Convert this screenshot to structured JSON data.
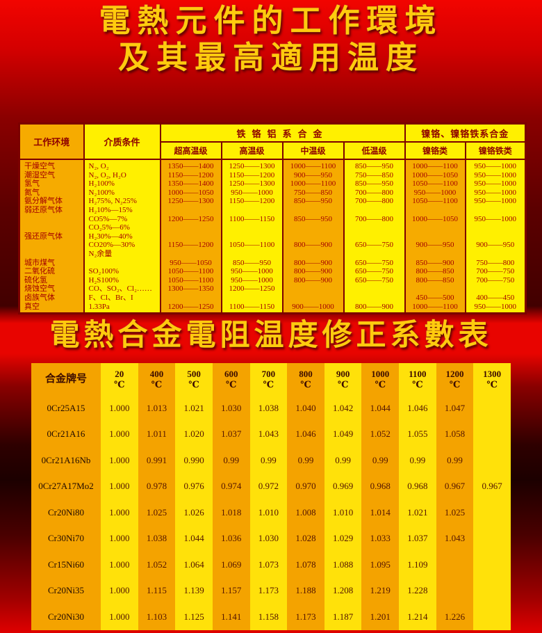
{
  "page": {
    "title_line1": "電熱元件的工作環境",
    "title_line2": "及其最高適用温度",
    "subtitle": "電熱合金電阻温度修正系數表"
  },
  "colors": {
    "background_red": "#c00000",
    "title_gold": "#ffcb0e",
    "table_orange": "#f6ab00",
    "table_yellow": "#fff000",
    "border_maroon": "#7c0000",
    "table1_text": "#a40000",
    "table2_text": "#531400"
  },
  "table1": {
    "header": {
      "col_env": "工作环境",
      "col_media": "介质条件",
      "group_fecral": "铁铬铝系合金",
      "group_nicr": "镍铬、镍铬铁系合金",
      "sub": [
        "超高温级",
        "高温级",
        "中温级",
        "低温级",
        "镍铬类",
        "镍铬铁类"
      ]
    },
    "body": {
      "env": [
        "干燥空气",
        "潮湿空气",
        "氢气",
        "氮气",
        "氨分解气体",
        "弱还原气体",
        "",
        "",
        "强还原气体",
        "",
        "",
        "城市煤气",
        "二氧化硫",
        "硫化氢",
        "烧蚀空气",
        "卤族气体",
        "真空"
      ],
      "media": [
        "N₂, O₂",
        "N₂, O₂, H₂O",
        "H₂100%",
        "N₂100%",
        "H₂75%, N₂25%",
        "H₂10%—15%",
        "CO5%—7%",
        "CO₂5%—6%",
        "H₂30%—40%",
        "CO20%—30%",
        "N₂余量",
        "",
        "SO₂100%",
        "H₂S100%",
        "CO、SO₂、Cl₂……",
        "F、Cl、Br、I",
        "1.33Pa"
      ],
      "ultra_high": [
        "1350——1400",
        "1150——1200",
        "1350——1400",
        "1000——1050",
        "1250——1300",
        "",
        "1200——1250",
        "",
        "",
        "1150——1200",
        "",
        "950——1050",
        "1050——1100",
        "1050——1100",
        "1300——1350",
        "",
        "1200——1250"
      ],
      "high": [
        "1250——1300",
        "1150——1200",
        "1250——1300",
        "950——1000",
        "1150——1200",
        "",
        "1100——1150",
        "",
        "",
        "1050——1100",
        "",
        "850——950",
        "950——1000",
        "950——1000",
        "1200——1250",
        "",
        "1100——1150"
      ],
      "medium": [
        "1000——1100",
        "900——950",
        "1000——1100",
        "750——850",
        "850——950",
        "",
        "850——950",
        "",
        "",
        "800——900",
        "",
        "800——900",
        "800——900",
        "800——900",
        "",
        "",
        "900——1000"
      ],
      "low": [
        "850——950",
        "750——850",
        "850——950",
        "700——800",
        "700——800",
        "",
        "700——800",
        "",
        "",
        "650——750",
        "",
        "650——750",
        "650——750",
        "650——750",
        "",
        "",
        "800——900"
      ],
      "nicr": [
        "1000——1100",
        "1000——1050",
        "1050——1100",
        "950——1000",
        "1050——1100",
        "",
        "1000——1050",
        "",
        "",
        "900——950",
        "",
        "850——900",
        "800——850",
        "800——850",
        "",
        "450——500",
        "1000——1100"
      ],
      "nicrfe": [
        "950——1000",
        "950——1000",
        "950——1000",
        "950——1000",
        "950——1000",
        "",
        "950——1000",
        "",
        "",
        "900——950",
        "",
        "750——800",
        "700——750",
        "700——750",
        "",
        "400——450",
        "950——1000"
      ]
    }
  },
  "table2": {
    "header": [
      "合金牌号",
      "20\n℃",
      "400\n℃",
      "500\n℃",
      "600\n℃",
      "700\n℃",
      "800\n℃",
      "900\n℃",
      "1000\n℃",
      "1100\n℃",
      "1200\n℃",
      "1300\n℃"
    ],
    "rows": [
      [
        "0Cr25A15",
        "1.000",
        "1.013",
        "1.021",
        "1.030",
        "1.038",
        "1.040",
        "1.042",
        "1.044",
        "1.046",
        "1.047",
        ""
      ],
      [
        "0Cr21A16",
        "1.000",
        "1.011",
        "1.020",
        "1.037",
        "1.043",
        "1.046",
        "1.049",
        "1.052",
        "1.055",
        "1.058",
        ""
      ],
      [
        "0Cr21A16Nb",
        "1.000",
        "0.991",
        "0.990",
        "0.99",
        "0.99",
        "0.99",
        "0.99",
        "0.99",
        "0.99",
        "0.99",
        ""
      ],
      [
        "0Cr27A17Mo2",
        "1.000",
        "0.978",
        "0.976",
        "0.974",
        "0.972",
        "0.970",
        "0.969",
        "0.968",
        "0.968",
        "0.967",
        "0.967"
      ],
      [
        "Cr20Ni80",
        "1.000",
        "1.025",
        "1.026",
        "1.018",
        "1.010",
        "1.008",
        "1.010",
        "1.014",
        "1.021",
        "1.025",
        ""
      ],
      [
        "Cr30Ni70",
        "1.000",
        "1.038",
        "1.044",
        "1.036",
        "1.030",
        "1.028",
        "1.029",
        "1.033",
        "1.037",
        "1.043",
        ""
      ],
      [
        "Cr15Ni60",
        "1.000",
        "1.052",
        "1.064",
        "1.069",
        "1.073",
        "1.078",
        "1.088",
        "1.095",
        "1.109",
        "",
        ""
      ],
      [
        "Cr20Ni35",
        "1.000",
        "1.115",
        "1.139",
        "1.157",
        "1.173",
        "1.188",
        "1.208",
        "1.219",
        "1.228",
        "",
        ""
      ],
      [
        "Cr20Ni30",
        "1.000",
        "1.103",
        "1.125",
        "1.141",
        "1.158",
        "1.173",
        "1.187",
        "1.201",
        "1.214",
        "1.226",
        ""
      ]
    ]
  }
}
